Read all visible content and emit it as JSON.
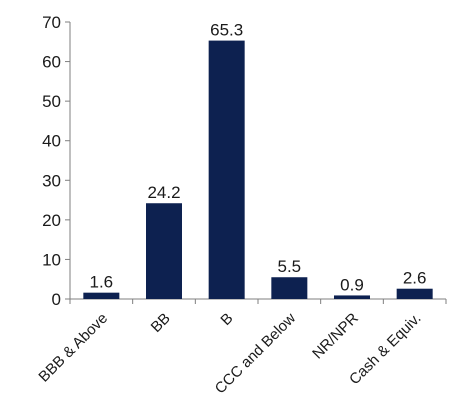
{
  "chart_data": {
    "type": "bar",
    "title": "",
    "xlabel": "",
    "ylabel": "",
    "categories": [
      "BBB & Above",
      "BB",
      "B",
      "CCC and Below",
      "NR/NPR",
      "Cash & Equiv."
    ],
    "values": [
      1.6,
      24.2,
      65.3,
      5.5,
      0.9,
      2.6
    ],
    "data_labels": [
      "1.6",
      "24.2",
      "65.3",
      "5.5",
      "0.9",
      "2.6"
    ],
    "ylim": [
      0,
      70
    ],
    "yticks": [
      0,
      10,
      20,
      30,
      40,
      50,
      60,
      70
    ],
    "grid": false,
    "legend": "none",
    "bar_color": "#0d2150",
    "axis_color": "#7f7f7f"
  }
}
